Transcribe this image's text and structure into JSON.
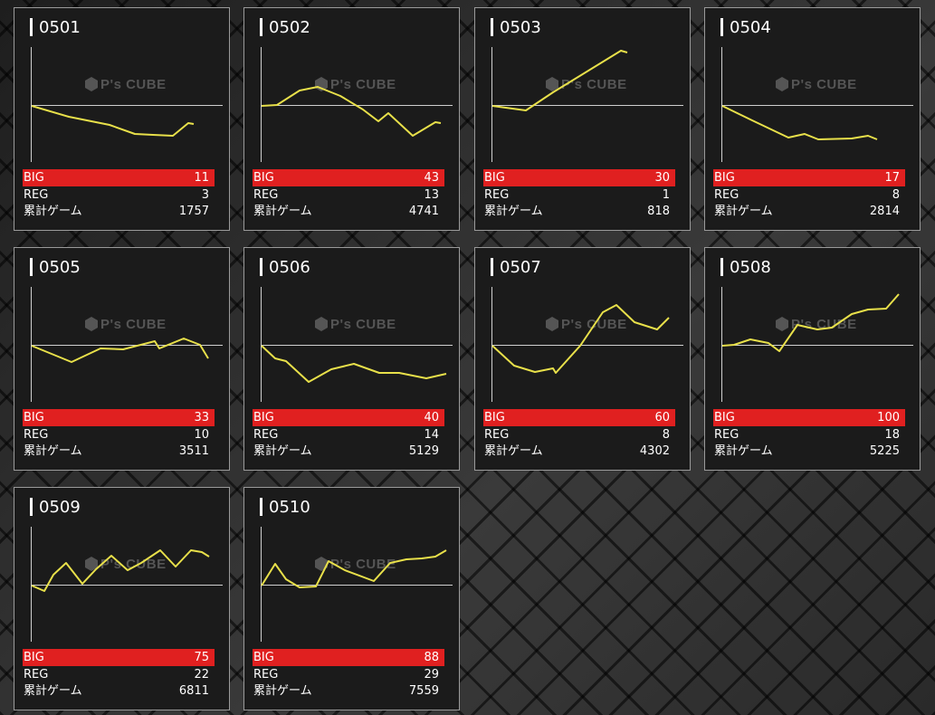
{
  "labels": {
    "big": "BIG",
    "reg": "REG",
    "total": "累計ゲーム"
  },
  "watermark": "P's CUBE",
  "colors": {
    "line": "#e8e04a",
    "big_bg": "#e02020",
    "axis": "#cfcfcf"
  },
  "machines": [
    {
      "id": "0501",
      "big": "11",
      "reg": "3",
      "total": "1757",
      "series": [
        [
          0,
          0
        ],
        [
          41,
          -12
        ],
        [
          86,
          -21
        ],
        [
          114,
          -31
        ],
        [
          134,
          -32
        ],
        [
          156,
          -33
        ],
        [
          173,
          -19
        ],
        [
          179,
          -20
        ]
      ]
    },
    {
      "id": "0502",
      "big": "43",
      "reg": "13",
      "total": "4741",
      "series": [
        [
          0,
          0
        ],
        [
          17,
          1
        ],
        [
          42,
          17
        ],
        [
          62,
          21
        ],
        [
          87,
          11
        ],
        [
          112,
          -4
        ],
        [
          129,
          -17
        ],
        [
          140,
          -8
        ],
        [
          167,
          -33
        ],
        [
          192,
          -18
        ],
        [
          198,
          -19
        ]
      ]
    },
    {
      "id": "0503",
      "big": "30",
      "reg": "1",
      "total": "818",
      "series": [
        [
          0,
          0
        ],
        [
          37,
          -5
        ],
        [
          67,
          15
        ],
        [
          142,
          61
        ],
        [
          149,
          59
        ]
      ]
    },
    {
      "id": "0504",
      "big": "17",
      "reg": "8",
      "total": "2814",
      "series": [
        [
          0,
          0
        ],
        [
          33,
          -16
        ],
        [
          73,
          -35
        ],
        [
          91,
          -31
        ],
        [
          106,
          -37
        ],
        [
          143,
          -36
        ],
        [
          161,
          -33
        ],
        [
          171,
          -37
        ]
      ]
    },
    {
      "id": "0505",
      "big": "33",
      "reg": "10",
      "total": "3511",
      "series": [
        [
          0,
          0
        ],
        [
          44,
          -18
        ],
        [
          76,
          -3
        ],
        [
          101,
          -4
        ],
        [
          136,
          5
        ],
        [
          141,
          -3
        ],
        [
          168,
          8
        ],
        [
          186,
          1
        ],
        [
          195,
          -14
        ]
      ]
    },
    {
      "id": "0506",
      "big": "40",
      "reg": "14",
      "total": "5129",
      "series": [
        [
          0,
          0
        ],
        [
          15,
          -14
        ],
        [
          27,
          -17
        ],
        [
          52,
          -40
        ],
        [
          77,
          -26
        ],
        [
          102,
          -20
        ],
        [
          130,
          -30
        ],
        [
          152,
          -30
        ],
        [
          182,
          -36
        ],
        [
          204,
          -31
        ]
      ]
    },
    {
      "id": "0507",
      "big": "60",
      "reg": "8",
      "total": "4302",
      "series": [
        [
          0,
          0
        ],
        [
          24,
          -22
        ],
        [
          47,
          -29
        ],
        [
          67,
          -25
        ],
        [
          70,
          -30
        ],
        [
          97,
          0
        ],
        [
          122,
          37
        ],
        [
          137,
          45
        ],
        [
          157,
          26
        ],
        [
          182,
          18
        ],
        [
          195,
          31
        ]
      ]
    },
    {
      "id": "0508",
      "big": "100",
      "reg": "18",
      "total": "5225",
      "series": [
        [
          0,
          0
        ],
        [
          13,
          1
        ],
        [
          31,
          7
        ],
        [
          51,
          3
        ],
        [
          63,
          -6
        ],
        [
          83,
          23
        ],
        [
          105,
          18
        ],
        [
          121,
          20
        ],
        [
          143,
          35
        ],
        [
          161,
          40
        ],
        [
          181,
          41
        ],
        [
          195,
          57
        ]
      ]
    },
    {
      "id": "0509",
      "big": "75",
      "reg": "22",
      "total": "6811",
      "series": [
        [
          0,
          0
        ],
        [
          14,
          -6
        ],
        [
          24,
          12
        ],
        [
          38,
          25
        ],
        [
          56,
          2
        ],
        [
          71,
          18
        ],
        [
          88,
          33
        ],
        [
          106,
          17
        ],
        [
          121,
          25
        ],
        [
          142,
          39
        ],
        [
          159,
          21
        ],
        [
          176,
          39
        ],
        [
          188,
          37
        ],
        [
          196,
          32
        ]
      ]
    },
    {
      "id": "0510",
      "big": "88",
      "reg": "29",
      "total": "7559",
      "series": [
        [
          0,
          0
        ],
        [
          15,
          24
        ],
        [
          27,
          7
        ],
        [
          42,
          -2
        ],
        [
          60,
          -1
        ],
        [
          74,
          27
        ],
        [
          92,
          17
        ],
        [
          124,
          5
        ],
        [
          142,
          25
        ],
        [
          160,
          29
        ],
        [
          177,
          30
        ],
        [
          192,
          32
        ],
        [
          204,
          39
        ]
      ]
    }
  ]
}
